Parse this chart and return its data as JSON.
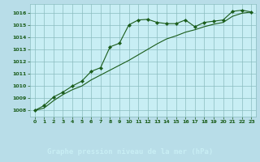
{
  "title": "Graphe pression niveau de la mer (hPa)",
  "background_color": "#b8dde8",
  "plot_background_color": "#c8eef4",
  "grid_color": "#8bbcbf",
  "line_color": "#1a5c1a",
  "marker_color": "#1a5c1a",
  "footer_color": "#2d6e2d",
  "footer_text_color": "#c8eef4",
  "xlim": [
    -0.5,
    23.5
  ],
  "ylim": [
    1007.5,
    1016.7
  ],
  "xticks": [
    0,
    1,
    2,
    3,
    4,
    5,
    6,
    7,
    8,
    9,
    10,
    11,
    12,
    13,
    14,
    15,
    16,
    17,
    18,
    19,
    20,
    21,
    22,
    23
  ],
  "yticks": [
    1008,
    1009,
    1010,
    1011,
    1012,
    1013,
    1014,
    1015,
    1016
  ],
  "series1_x": [
    0,
    1,
    2,
    3,
    4,
    5,
    6,
    7,
    8,
    9,
    10,
    11,
    12,
    13,
    14,
    15,
    16,
    17,
    18,
    19,
    20,
    21,
    22,
    23
  ],
  "series1_y": [
    1008.0,
    1008.4,
    1009.1,
    1009.5,
    1010.0,
    1010.4,
    1011.2,
    1011.5,
    1013.2,
    1013.5,
    1015.0,
    1015.4,
    1015.45,
    1015.2,
    1015.1,
    1015.1,
    1015.4,
    1014.85,
    1015.2,
    1015.3,
    1015.4,
    1016.1,
    1016.2,
    1016.05
  ],
  "series2_x": [
    0,
    1,
    2,
    3,
    4,
    5,
    6,
    7,
    8,
    9,
    10,
    11,
    12,
    13,
    14,
    15,
    16,
    17,
    18,
    19,
    20,
    21,
    22,
    23
  ],
  "series2_y": [
    1008.0,
    1008.2,
    1008.8,
    1009.3,
    1009.7,
    1010.0,
    1010.5,
    1010.9,
    1011.3,
    1011.7,
    1012.1,
    1012.55,
    1013.0,
    1013.45,
    1013.85,
    1014.1,
    1014.4,
    1014.6,
    1014.85,
    1015.05,
    1015.2,
    1015.7,
    1015.95,
    1016.05
  ]
}
